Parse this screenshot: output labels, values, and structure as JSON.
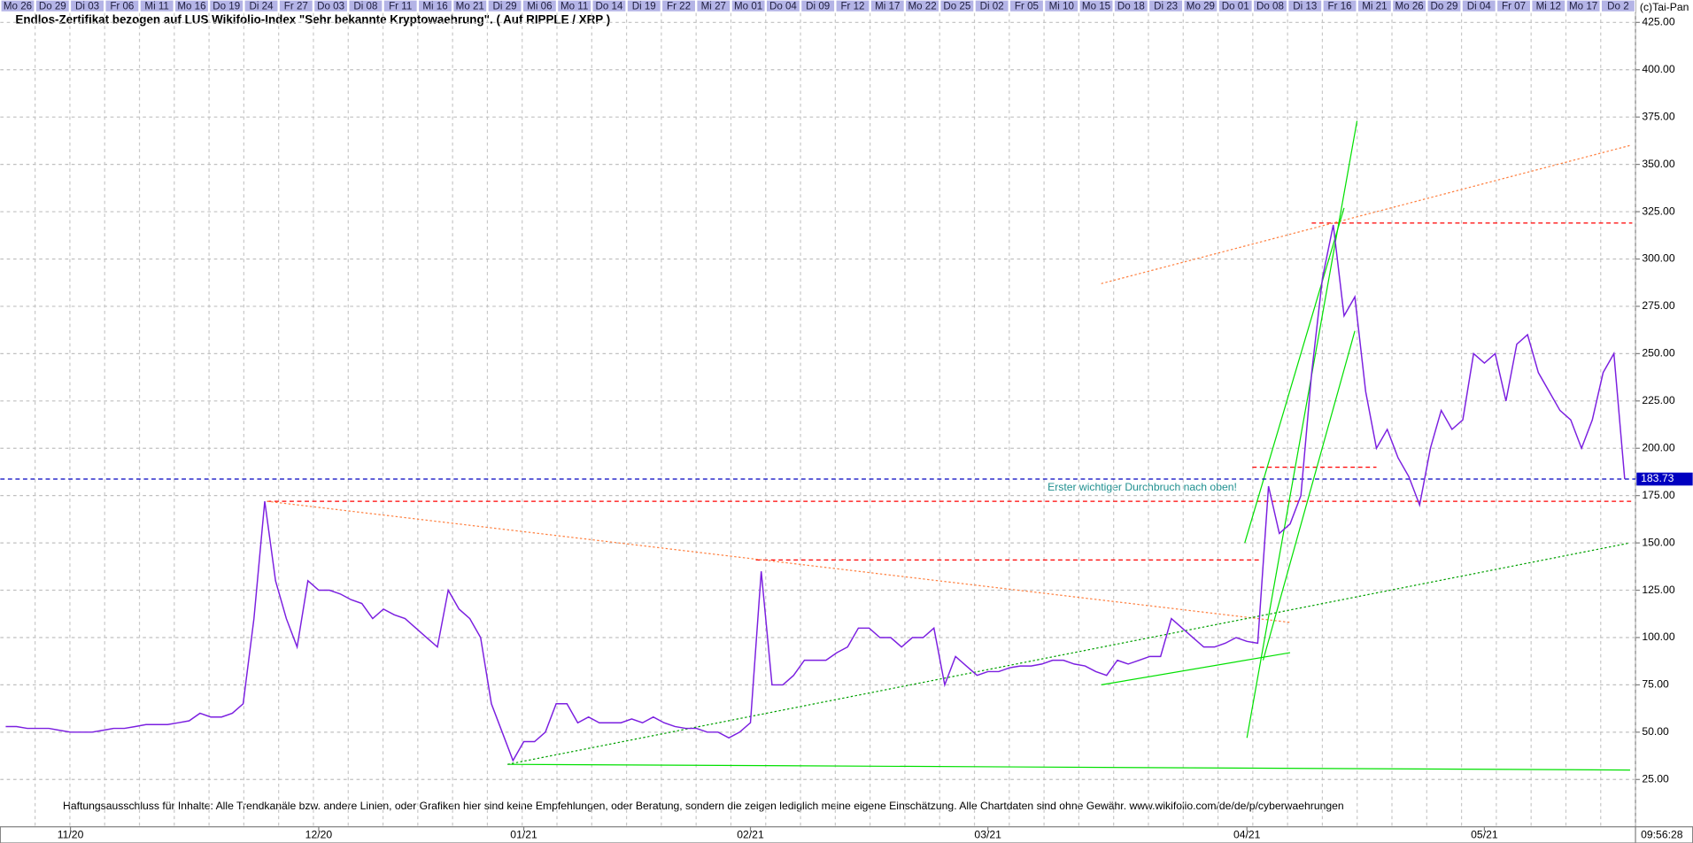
{
  "chart_data": {
    "type": "line",
    "title": "Endlos-Zertifikat bezogen auf LUS Wikifolio-Index \"Sehr bekannte Kryptowaehrung\". ( Auf RIPPLE / XRP )",
    "copyright": "(c)Tai-Pan",
    "time": "09:56:28",
    "annotation": "Erster wichtiger Durchbruch nach oben!",
    "disclaimer": "Haftungsausschluss für Inhalte: Alle Trendkanäle bzw. andere Linien, oder Grafiken hier sind keine Empfehlungen, oder Beratung, sondern die zeigen lediglich meine eigene Einschätzung. Alle Chartdaten sind ohne Gewähr.  www.wikifolio.com/de/de/p/cyberwaehrungen",
    "last_value": 183.73,
    "top_labels": [
      "Mo 26",
      "Do 29",
      "Di 03",
      "Fr 06",
      "Mi 11",
      "Mo 16",
      "Do 19",
      "Di 24",
      "Fr 27",
      "Do 03",
      "Di 08",
      "Fr 11",
      "Mi 16",
      "Mo 21",
      "Di 29",
      "Mi 06",
      "Mo 11",
      "Do 14",
      "Di 19",
      "Fr 22",
      "Mi 27",
      "Mo 01",
      "Do 04",
      "Di 09",
      "Fr 12",
      "Mi 17",
      "Mo 22",
      "Do 25",
      "Di 02",
      "Fr 05",
      "Mi 10",
      "Mo 15",
      "Do 18",
      "Di 23",
      "Mo 29",
      "Do 01",
      "Do 08",
      "Di 13",
      "Fr 16",
      "Mi 21",
      "Mo 26",
      "Do 29",
      "Di 04",
      "Fr 07",
      "Mi 12",
      "Mo 17",
      "Do 2"
    ],
    "categories": [
      null,
      null,
      null,
      null,
      null,
      null,
      "11/20",
      null,
      null,
      null,
      null,
      null,
      null,
      null,
      null,
      null,
      null,
      null,
      null,
      null,
      null,
      null,
      null,
      null,
      null,
      null,
      null,
      null,
      null,
      "12/20",
      null,
      null,
      null,
      null,
      null,
      null,
      null,
      null,
      null,
      null,
      null,
      null,
      null,
      null,
      null,
      null,
      null,
      null,
      "01/21",
      null,
      null,
      null,
      null,
      null,
      null,
      null,
      null,
      null,
      null,
      null,
      null,
      null,
      null,
      null,
      null,
      null,
      null,
      null,
      null,
      "02/21",
      null,
      null,
      null,
      null,
      null,
      null,
      null,
      null,
      null,
      null,
      null,
      null,
      null,
      null,
      null,
      null,
      null,
      null,
      null,
      null,
      null,
      "03/21",
      null,
      null,
      null,
      null,
      null,
      null,
      null,
      null,
      null,
      null,
      null,
      null,
      null,
      null,
      null,
      null,
      null,
      null,
      null,
      null,
      null,
      null,
      null,
      "04/21",
      null,
      null,
      null,
      null,
      null,
      null,
      null,
      null,
      null,
      null,
      null,
      null,
      null,
      null,
      null,
      null,
      null,
      null,
      null,
      null,
      null,
      "05/21",
      null,
      null,
      null,
      null,
      null,
      null,
      null,
      null,
      null,
      null,
      null,
      null,
      null
    ],
    "series": [
      {
        "name": "RIPPLE / XRP",
        "color": "#7b1fe0",
        "values": [
          53,
          53,
          52,
          52,
          52,
          51,
          50,
          50,
          50,
          51,
          52,
          52,
          53,
          54,
          54,
          54,
          55,
          56,
          60,
          58,
          58,
          60,
          65,
          110,
          172,
          130,
          110,
          95,
          130,
          125,
          125,
          123,
          120,
          118,
          110,
          115,
          112,
          110,
          105,
          100,
          95,
          125,
          115,
          110,
          100,
          65,
          50,
          35,
          45,
          45,
          50,
          65,
          65,
          55,
          58,
          55,
          55,
          55,
          57,
          55,
          58,
          55,
          53,
          52,
          52,
          50,
          50,
          47,
          50,
          55,
          135,
          75,
          75,
          80,
          88,
          88,
          88,
          92,
          95,
          105,
          105,
          100,
          100,
          95,
          100,
          100,
          105,
          75,
          90,
          85,
          80,
          82,
          82,
          84,
          85,
          85,
          86,
          88,
          88,
          86,
          85,
          82,
          80,
          88,
          86,
          88,
          90,
          90,
          110,
          105,
          100,
          95,
          95,
          97,
          100,
          98,
          97,
          180,
          155,
          160,
          175,
          240,
          290,
          318,
          270,
          280,
          230,
          200,
          210,
          195,
          185,
          170,
          200,
          220,
          210,
          215,
          250,
          245,
          250,
          225,
          255,
          260,
          240,
          230,
          220,
          215,
          200,
          215,
          240,
          250,
          183.73
        ]
      }
    ],
    "trendlines": [
      {
        "color": "#ff0000",
        "dash": "dashed",
        "x": [
          24.2,
          150.7
        ],
        "y": [
          172,
          172
        ]
      },
      {
        "color": "#ff0000",
        "dash": "dashed",
        "x": [
          69.5,
          116.3
        ],
        "y": [
          141,
          141
        ]
      },
      {
        "color": "#ff0000",
        "dash": "dashed",
        "x": [
          121,
          150.7
        ],
        "y": [
          319,
          319
        ]
      },
      {
        "color": "#ff0000",
        "dash": "dashed",
        "x": [
          115.5,
          127
        ],
        "y": [
          190,
          190
        ]
      },
      {
        "color": "#ff8040",
        "dash": "dotted",
        "x": [
          24.2,
          119
        ],
        "y": [
          172,
          108
        ]
      },
      {
        "color": "#ff8040",
        "dash": "dotted",
        "x": [
          101.5,
          150.5
        ],
        "y": [
          287,
          360
        ]
      },
      {
        "color": "#00e000",
        "dash": "solid",
        "x": [
          46.5,
          150.5
        ],
        "y": [
          33,
          30
        ]
      },
      {
        "color": "#00a000",
        "dash": "dotted",
        "x": [
          46.5,
          150.5
        ],
        "y": [
          33,
          150
        ]
      },
      {
        "color": "#00e000",
        "dash": "solid",
        "x": [
          115,
          125.2
        ],
        "y": [
          47,
          373
        ]
      },
      {
        "color": "#00e000",
        "dash": "solid",
        "x": [
          114.8,
          124
        ],
        "y": [
          150,
          327
        ]
      },
      {
        "color": "#00e000",
        "dash": "solid",
        "x": [
          116.5,
          125
        ],
        "y": [
          88,
          262
        ]
      },
      {
        "color": "#00e000",
        "dash": "solid",
        "x": [
          101.5,
          119
        ],
        "y": [
          75,
          92
        ]
      },
      {
        "color": "#0000c0",
        "dash": "dashed",
        "x": [
          -0.5,
          151
        ],
        "y": [
          183.73,
          183.73
        ]
      }
    ],
    "xlim": [
      -0.5,
      151
    ],
    "ylim": [
      0,
      430
    ],
    "yticks": [
      {
        "value": 25,
        "label": "25.00"
      },
      {
        "value": 50,
        "label": "50.00"
      },
      {
        "value": 75,
        "label": "75.00"
      },
      {
        "value": 100,
        "label": "100.00"
      },
      {
        "value": 125,
        "label": "125.00"
      },
      {
        "value": 150,
        "label": "150.00"
      },
      {
        "value": 175,
        "label": "175.00"
      },
      {
        "value": 200,
        "label": "200.00"
      },
      {
        "value": 225,
        "label": "225.00"
      },
      {
        "value": 250,
        "label": "250.00"
      },
      {
        "value": 275,
        "label": "275.00"
      },
      {
        "value": 300,
        "label": "300.00"
      },
      {
        "value": 325,
        "label": "325.00"
      },
      {
        "value": 350,
        "label": "350.00"
      },
      {
        "value": 375,
        "label": "375.00"
      },
      {
        "value": 400,
        "label": "400.00"
      },
      {
        "value": 425,
        "label": "425.00"
      }
    ],
    "grid": true
  }
}
